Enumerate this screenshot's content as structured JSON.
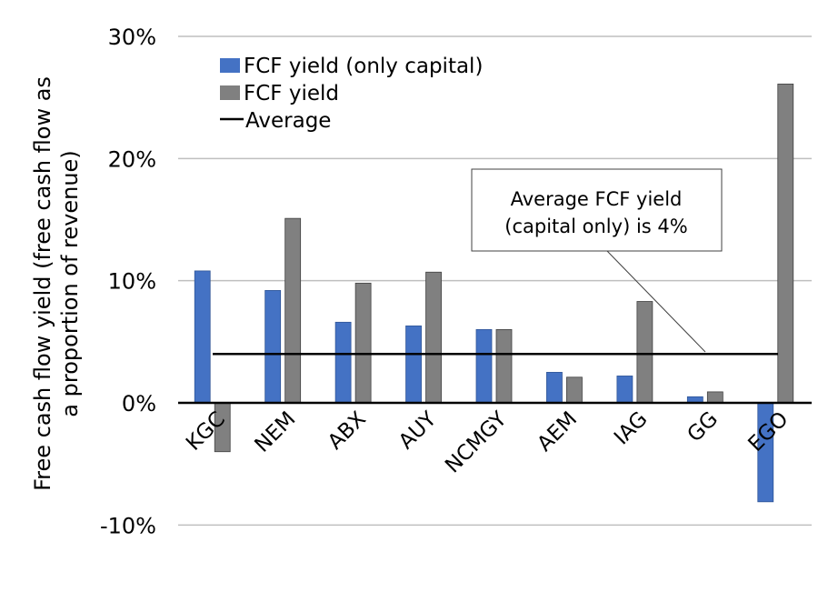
{
  "chart_data": {
    "type": "bar",
    "categories": [
      "KGC",
      "NEM",
      "ABX",
      "AUY",
      "NCMGY",
      "AEM",
      "IAG",
      "GG",
      "EGO"
    ],
    "series": [
      {
        "name": "FCF yield (only capital)",
        "color": "#4472C4",
        "values": [
          10.8,
          9.2,
          6.6,
          6.3,
          6.0,
          2.5,
          2.2,
          0.5,
          -8.1
        ]
      },
      {
        "name": "FCF yield",
        "color": "#808080",
        "values": [
          -4.0,
          15.1,
          9.8,
          10.7,
          6.0,
          2.1,
          8.3,
          0.9,
          26.1
        ]
      }
    ],
    "average": {
      "name": "Average",
      "value": 4.0,
      "color": "#000000"
    },
    "ylabel": "Free cash flow yield (free cash flow as a proportion of revenue)",
    "ylabel_lines": [
      "Free cash flow yield (free cash flow as",
      "a proportion of revenue)"
    ],
    "xlabel": "",
    "ylim": [
      -10,
      30
    ],
    "yticks": [
      -10,
      0,
      10,
      20,
      30
    ],
    "ytick_labels": [
      "-10%",
      "0%",
      "10%",
      "20%",
      "30%"
    ],
    "grid": true,
    "legend_position": "top-left",
    "annotation": {
      "lines": [
        "Average FCF yield",
        "(capital only) is 4%"
      ]
    }
  }
}
